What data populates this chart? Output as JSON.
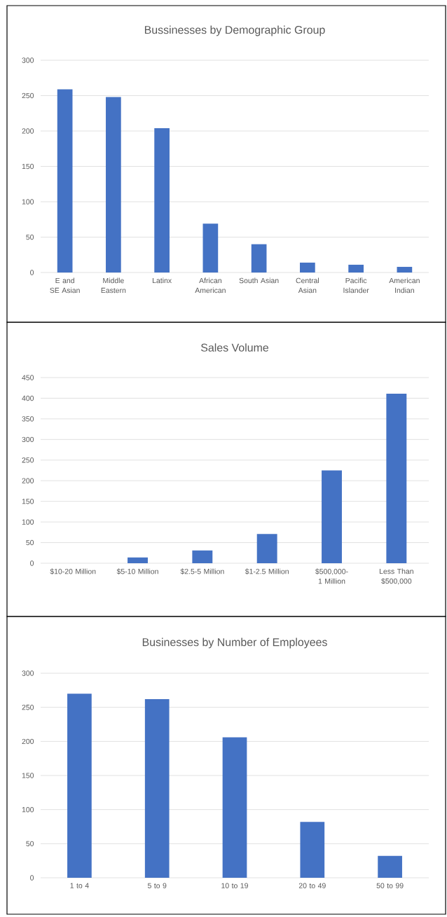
{
  "chart_data": [
    {
      "type": "bar",
      "title": "Bussinesses by Demographic Group",
      "categories": [
        "E and SE Asian",
        "Middle Eastern",
        "Latinx",
        "African American",
        "South Asian",
        "Central Asian",
        "Pacific Islander",
        "American Indian"
      ],
      "values": [
        259,
        248,
        204,
        69,
        40,
        14,
        11,
        8
      ],
      "color": "#4472c4",
      "ylim": [
        0,
        300
      ],
      "yticks": [
        0,
        50,
        100,
        150,
        200,
        250,
        300
      ],
      "grid": "y"
    },
    {
      "type": "bar",
      "title": "Sales Volume",
      "categories": [
        "$10-20 Million",
        "$5-10 Million",
        "$2.5-5 Million",
        "$1-2.5 Million",
        "$500,000-1 Million",
        "Less Than $500,000"
      ],
      "values": [
        0,
        14,
        31,
        71,
        225,
        411
      ],
      "color": "#4472c4",
      "ylim": [
        0,
        450
      ],
      "yticks": [
        0,
        50,
        100,
        150,
        200,
        250,
        300,
        350,
        400,
        450
      ],
      "grid": "y"
    },
    {
      "type": "bar",
      "title": "Businesses by Number of Employees",
      "categories": [
        "1 to 4",
        "5 to 9",
        "10 to 19",
        "20 to 49",
        "50 to 99"
      ],
      "values": [
        270,
        262,
        206,
        82,
        32
      ],
      "color": "#4472c4",
      "ylim": [
        0,
        300
      ],
      "yticks": [
        0,
        50,
        100,
        150,
        200,
        250,
        300
      ],
      "grid": "y"
    }
  ]
}
